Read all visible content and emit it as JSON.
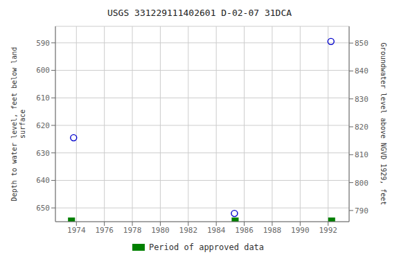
{
  "chart_data": {
    "type": "scatter",
    "title": "USGS 331229111402601 D-02-07 31DCA",
    "x": [
      1973.8,
      1985.3,
      1992.2
    ],
    "values": [
      624.5,
      652.0,
      589.5
    ],
    "color": "#0000cc",
    "marker": "circle",
    "xlim": [
      1972.5,
      1993.5
    ],
    "xticks": [
      1974,
      1976,
      1978,
      1980,
      1982,
      1984,
      1986,
      1988,
      1990,
      1992
    ],
    "ylim": [
      655,
      584
    ],
    "yticks": [
      590,
      600,
      610,
      620,
      630,
      640,
      650
    ],
    "y_label": "Depth to water level, feet below land\nsurface",
    "y2lim": [
      786,
      856
    ],
    "y2ticks": [
      790,
      800,
      810,
      820,
      830,
      840,
      850
    ],
    "y2_label": "Groundwater level above NGVD 1929, feet",
    "grid": true,
    "legend": "bottom",
    "approved": {
      "label": "Period of approved data",
      "color": "#008000",
      "bars": [
        {
          "x": 1973.4,
          "width": 0.5
        },
        {
          "x": 1985.1,
          "width": 0.5
        },
        {
          "x": 1992.0,
          "width": 0.5
        }
      ]
    }
  }
}
